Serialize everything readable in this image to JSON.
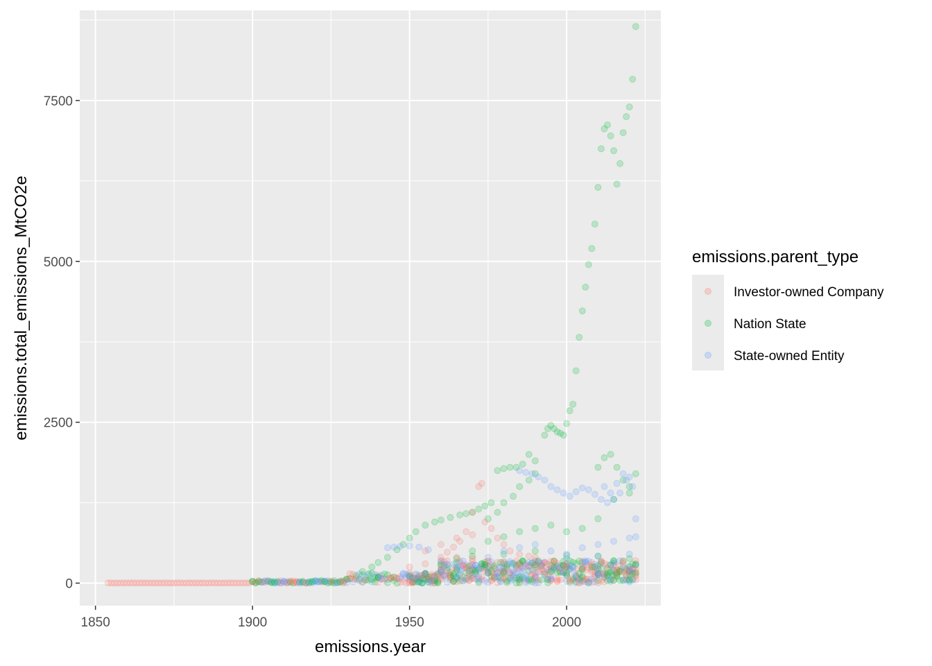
{
  "chart_data": {
    "type": "scatter",
    "title": "",
    "xlabel": "emissions.year",
    "ylabel": "emissions.total_emissions_MtCO2e",
    "xlim": [
      1845,
      2030
    ],
    "ylim": [
      -350,
      8900
    ],
    "x_ticks": [
      1850,
      1900,
      1950,
      2000
    ],
    "y_ticks": [
      0,
      2500,
      5000,
      7500
    ],
    "x_tick_labels": [
      "1850",
      "1900",
      "1950",
      "2000"
    ],
    "y_tick_labels": [
      "0",
      "2500",
      "5000",
      "7500"
    ],
    "grid": true,
    "point_alpha": 0.2,
    "legend": {
      "title": "emissions.parent_type",
      "position": "right",
      "entries": [
        "Investor-owned Company",
        "Nation State",
        "State-owned Entity"
      ]
    },
    "colors": {
      "Investor-owned Company": "#F8766D",
      "Nation State": "#00BA38",
      "State-owned Entity": "#619CFF",
      "panel": "#EBEBEB",
      "grid_major": "#FFFFFF"
    },
    "series": [
      {
        "name": "Nation State",
        "color": "#00BA38",
        "points": [
          [
            1993,
            2300
          ],
          [
            1994,
            2400
          ],
          [
            1995,
            2450
          ],
          [
            1996,
            2400
          ],
          [
            1997,
            2350
          ],
          [
            1998,
            2330
          ],
          [
            1999,
            2300
          ],
          [
            2000,
            2480
          ],
          [
            2001,
            2680
          ],
          [
            2002,
            2780
          ],
          [
            2003,
            3300
          ],
          [
            2004,
            3820
          ],
          [
            2005,
            4230
          ],
          [
            2006,
            4600
          ],
          [
            2007,
            4950
          ],
          [
            2008,
            5200
          ],
          [
            2009,
            5580
          ],
          [
            2010,
            6150
          ],
          [
            2011,
            6750
          ],
          [
            2012,
            7060
          ],
          [
            2013,
            7120
          ],
          [
            2014,
            6950
          ],
          [
            2015,
            6720
          ],
          [
            2016,
            6200
          ],
          [
            2017,
            6520
          ],
          [
            2018,
            7000
          ],
          [
            2019,
            7250
          ],
          [
            2020,
            7400
          ],
          [
            2021,
            7830
          ],
          [
            2022,
            8650
          ],
          [
            1978,
            1750
          ],
          [
            1980,
            1780
          ],
          [
            1982,
            1800
          ],
          [
            1984,
            1800
          ],
          [
            1986,
            1850
          ],
          [
            1988,
            2000
          ],
          [
            1990,
            1900
          ],
          [
            2010,
            1800
          ],
          [
            2012,
            1950
          ],
          [
            2014,
            2000
          ],
          [
            2016,
            1800
          ],
          [
            2018,
            1600
          ],
          [
            2020,
            1500
          ],
          [
            2022,
            1700
          ],
          [
            1935,
            180
          ],
          [
            1938,
            250
          ],
          [
            1940,
            320
          ],
          [
            1943,
            400
          ],
          [
            1946,
            520
          ],
          [
            1948,
            600
          ],
          [
            1950,
            700
          ],
          [
            1952,
            800
          ],
          [
            1955,
            900
          ],
          [
            1958,
            950
          ],
          [
            1960,
            980
          ],
          [
            1963,
            1020
          ],
          [
            1966,
            1060
          ],
          [
            1968,
            1080
          ],
          [
            1970,
            1100
          ],
          [
            1972,
            1150
          ],
          [
            1974,
            1200
          ],
          [
            1976,
            1250
          ],
          [
            1975,
            1000
          ],
          [
            1978,
            1100
          ],
          [
            1980,
            1250
          ],
          [
            1983,
            1350
          ],
          [
            1985,
            1500
          ],
          [
            1988,
            1600
          ],
          [
            1990,
            1700
          ],
          [
            1970,
            500
          ],
          [
            1975,
            650
          ],
          [
            1980,
            720
          ],
          [
            1985,
            800
          ],
          [
            1990,
            850
          ],
          [
            1995,
            900
          ],
          [
            2000,
            800
          ],
          [
            2005,
            850
          ],
          [
            2010,
            1000
          ],
          [
            2015,
            1300
          ],
          [
            2020,
            1400
          ],
          [
            1960,
            300
          ],
          [
            1965,
            380
          ],
          [
            1970,
            420
          ],
          [
            1980,
            450
          ],
          [
            1990,
            500
          ],
          [
            2000,
            430
          ],
          [
            2010,
            420
          ],
          [
            2020,
            380
          ],
          [
            1955,
            150
          ],
          [
            1965,
            200
          ],
          [
            1975,
            260
          ],
          [
            1985,
            300
          ],
          [
            1995,
            280
          ],
          [
            2005,
            320
          ],
          [
            2015,
            350
          ],
          [
            2022,
            300
          ],
          [
            1930,
            60
          ],
          [
            1940,
            90
          ],
          [
            1950,
            130
          ],
          [
            1960,
            170
          ],
          [
            1970,
            200
          ],
          [
            1980,
            230
          ],
          [
            1990,
            240
          ],
          [
            2000,
            250
          ],
          [
            2010,
            270
          ],
          [
            2020,
            260
          ],
          [
            1985,
            100
          ],
          [
            1995,
            180
          ],
          [
            2005,
            220
          ],
          [
            2015,
            200
          ],
          [
            2020,
            150
          ]
        ]
      },
      {
        "name": "State-owned Entity",
        "color": "#619CFF",
        "points": [
          [
            1943,
            550
          ],
          [
            1945,
            560
          ],
          [
            1947,
            570
          ],
          [
            1950,
            580
          ],
          [
            1953,
            560
          ],
          [
            1956,
            520
          ],
          [
            1985,
            1750
          ],
          [
            1987,
            1720
          ],
          [
            1989,
            1700
          ],
          [
            1991,
            1650
          ],
          [
            1993,
            1600
          ],
          [
            1995,
            1500
          ],
          [
            1997,
            1450
          ],
          [
            1999,
            1400
          ],
          [
            2001,
            1350
          ],
          [
            2003,
            1420
          ],
          [
            2005,
            1480
          ],
          [
            2007,
            1450
          ],
          [
            2009,
            1380
          ],
          [
            2011,
            1300
          ],
          [
            2013,
            1250
          ],
          [
            2015,
            1300
          ],
          [
            2017,
            1400
          ],
          [
            2019,
            1600
          ],
          [
            2021,
            1500
          ],
          [
            2022,
            1000
          ],
          [
            1975,
            400
          ],
          [
            1980,
            500
          ],
          [
            1985,
            550
          ],
          [
            1990,
            600
          ],
          [
            1995,
            500
          ],
          [
            2000,
            450
          ],
          [
            2005,
            550
          ],
          [
            2010,
            600
          ],
          [
            2015,
            650
          ],
          [
            2020,
            700
          ],
          [
            2022,
            720
          ],
          [
            1960,
            200
          ],
          [
            1970,
            280
          ],
          [
            1980,
            320
          ],
          [
            1990,
            350
          ],
          [
            2000,
            380
          ],
          [
            2010,
            420
          ],
          [
            2020,
            450
          ],
          [
            1965,
            100
          ],
          [
            1975,
            150
          ],
          [
            1985,
            180
          ],
          [
            1995,
            220
          ],
          [
            2005,
            250
          ],
          [
            2015,
            300
          ],
          [
            2022,
            280
          ],
          [
            1990,
            80
          ],
          [
            2000,
            120
          ],
          [
            2010,
            160
          ],
          [
            2020,
            200
          ],
          [
            2012,
            1500
          ],
          [
            2014,
            1400
          ],
          [
            2016,
            1550
          ],
          [
            2018,
            1700
          ],
          [
            2020,
            1650
          ]
        ]
      },
      {
        "name": "Investor-owned Company",
        "color": "#F8766D",
        "points": [
          [
            1960,
            400
          ],
          [
            1962,
            480
          ],
          [
            1964,
            560
          ],
          [
            1966,
            650
          ],
          [
            1968,
            800
          ],
          [
            1970,
            1100
          ],
          [
            1972,
            1500
          ],
          [
            1973,
            1550
          ],
          [
            1974,
            950
          ],
          [
            1976,
            850
          ],
          [
            1978,
            700
          ],
          [
            1980,
            600
          ],
          [
            1982,
            500
          ],
          [
            1985,
            450
          ],
          [
            1988,
            420
          ],
          [
            1990,
            400
          ],
          [
            1950,
            250
          ],
          [
            1955,
            300
          ],
          [
            1960,
            350
          ],
          [
            1965,
            400
          ],
          [
            1970,
            380
          ],
          [
            1975,
            340
          ],
          [
            1980,
            300
          ],
          [
            1985,
            280
          ],
          [
            1990,
            260
          ],
          [
            1995,
            250
          ],
          [
            2000,
            240
          ],
          [
            2005,
            230
          ],
          [
            2010,
            220
          ],
          [
            2015,
            200
          ],
          [
            2020,
            180
          ],
          [
            1940,
            120
          ],
          [
            1950,
            160
          ],
          [
            1960,
            200
          ],
          [
            1970,
            220
          ],
          [
            1980,
            180
          ],
          [
            1990,
            150
          ],
          [
            2000,
            140
          ],
          [
            2010,
            130
          ],
          [
            2020,
            120
          ],
          [
            2022,
            110
          ],
          [
            1955,
            500
          ],
          [
            1960,
            600
          ],
          [
            1965,
            700
          ],
          [
            1970,
            750
          ]
        ]
      }
    ]
  }
}
